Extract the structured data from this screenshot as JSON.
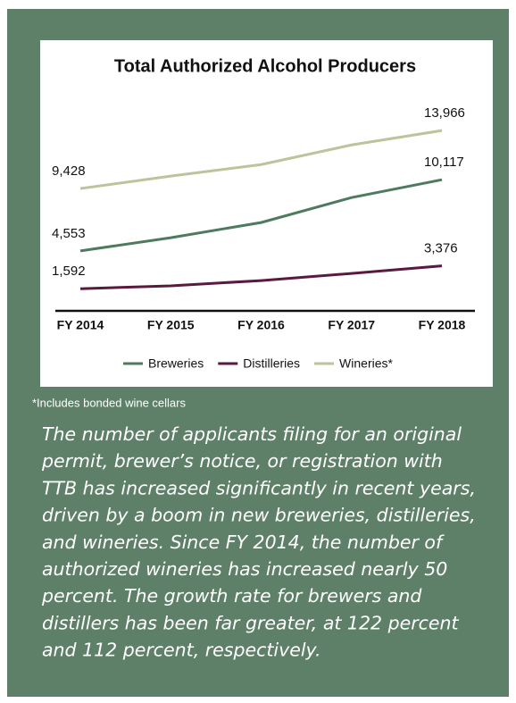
{
  "chart_data": {
    "type": "line",
    "title": "Total Authorized Alcohol Producers",
    "categories": [
      "FY 2014",
      "FY 2015",
      "FY 2016",
      "FY 2017",
      "FY 2018"
    ],
    "series": [
      {
        "name": "Breweries",
        "color": "#4e7a5e",
        "values": [
          4553,
          5580,
          6770,
          8720,
          10117
        ],
        "value_labels": [
          "4,553",
          null,
          null,
          null,
          "10,117"
        ]
      },
      {
        "name": "Distilleries",
        "color": "#5a1a40",
        "values": [
          1592,
          1820,
          2230,
          2790,
          3376
        ],
        "value_labels": [
          "1,592",
          null,
          null,
          null,
          "3,376"
        ]
      },
      {
        "name": "Wineries*",
        "color": "#bfc29a",
        "values": [
          9428,
          10400,
          11300,
          12840,
          13966
        ],
        "value_labels": [
          "9,428",
          null,
          null,
          null,
          "13,966"
        ]
      }
    ],
    "ylim": [
      0,
      16000
    ],
    "legend": "bottom"
  },
  "footnote": "*Includes bonded wine cellars",
  "body_lines": [
    "The number of applicants filing for an original",
    "permit, brewer’s notice, or registration with",
    "TTB has increased significantly in recent years,",
    "driven by a boom in new breweries, distilleries,",
    "and wineries. Since FY 2014, the number of",
    "authorized wineries has increased nearly 50",
    "percent. The growth rate for brewers and",
    "distillers has been far greater, at 122 percent",
    "and 112 percent, respectively."
  ]
}
